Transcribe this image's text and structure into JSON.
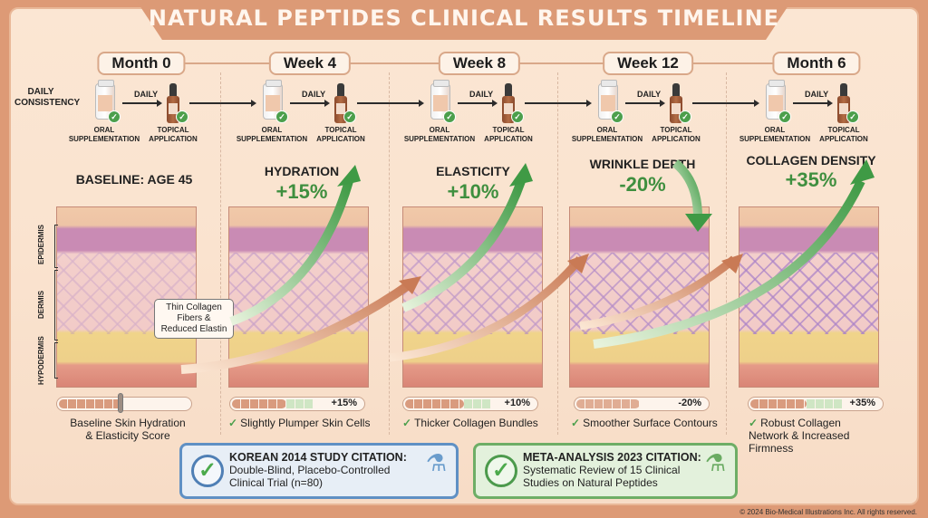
{
  "title": "NATURAL PEPTIDES CLINICAL RESULTS TIMELINE",
  "regimen": {
    "row_label": "DAILY CONSISTENCY",
    "daily_label": "DAILY",
    "oral_label": "ORAL SUPPLEMENTATION",
    "topical_label": "TOPICAL APPLICATION"
  },
  "layer_labels": [
    "EPIDERMIS",
    "DERMIS",
    "HYPODERMIS"
  ],
  "callout": "Thin Collagen Fibers & Reduced Elastin",
  "stages": [
    {
      "label": "Month 0",
      "metric_title": "BASELINE: AGE 45",
      "metric_value": "",
      "bar_pct": "",
      "caption": "Baseline Skin Hydration & Elasticity Score",
      "checked": false,
      "direction": "none"
    },
    {
      "label": "Week 4",
      "metric_title": "HYDRATION",
      "metric_value": "+15%",
      "bar_pct": "+15%",
      "caption": "Slightly Plumper Skin Cells",
      "checked": true,
      "direction": "up"
    },
    {
      "label": "Week 8",
      "metric_title": "ELASTICITY",
      "metric_value": "+10%",
      "bar_pct": "+10%",
      "caption": "Thicker Collagen Bundles",
      "checked": true,
      "direction": "up"
    },
    {
      "label": "Week 12",
      "metric_title": "WRINKLE DEPTH",
      "metric_value": "-20%",
      "bar_pct": "-20%",
      "caption": "Smoother Surface Contours",
      "checked": true,
      "direction": "down"
    },
    {
      "label": "Month 6",
      "metric_title": "COLLAGEN DENSITY",
      "metric_value": "+35%",
      "bar_pct": "+35%",
      "caption": "Robust Collagen Network & Increased Firmness",
      "checked": true,
      "direction": "up"
    }
  ],
  "citations": [
    {
      "title": "KOREAN 2014 STUDY CITATION:",
      "body": "Double-Blind, Placebo-Controlled Clinical Trial (n=80)",
      "color": "#5f90c4"
    },
    {
      "title": "META-ANALYSIS 2023 CITATION:",
      "body": "Systematic Review of 15 Clinical Studies on Natural Peptides",
      "color": "#6eae66"
    }
  ],
  "copyright": "© 2024 Bio-Medical Illustrations Inc. All rights reserved.",
  "colors": {
    "accent_green": "#3f8f3f",
    "title_bar": "#dc9a76",
    "background": "#fbe6d3"
  }
}
